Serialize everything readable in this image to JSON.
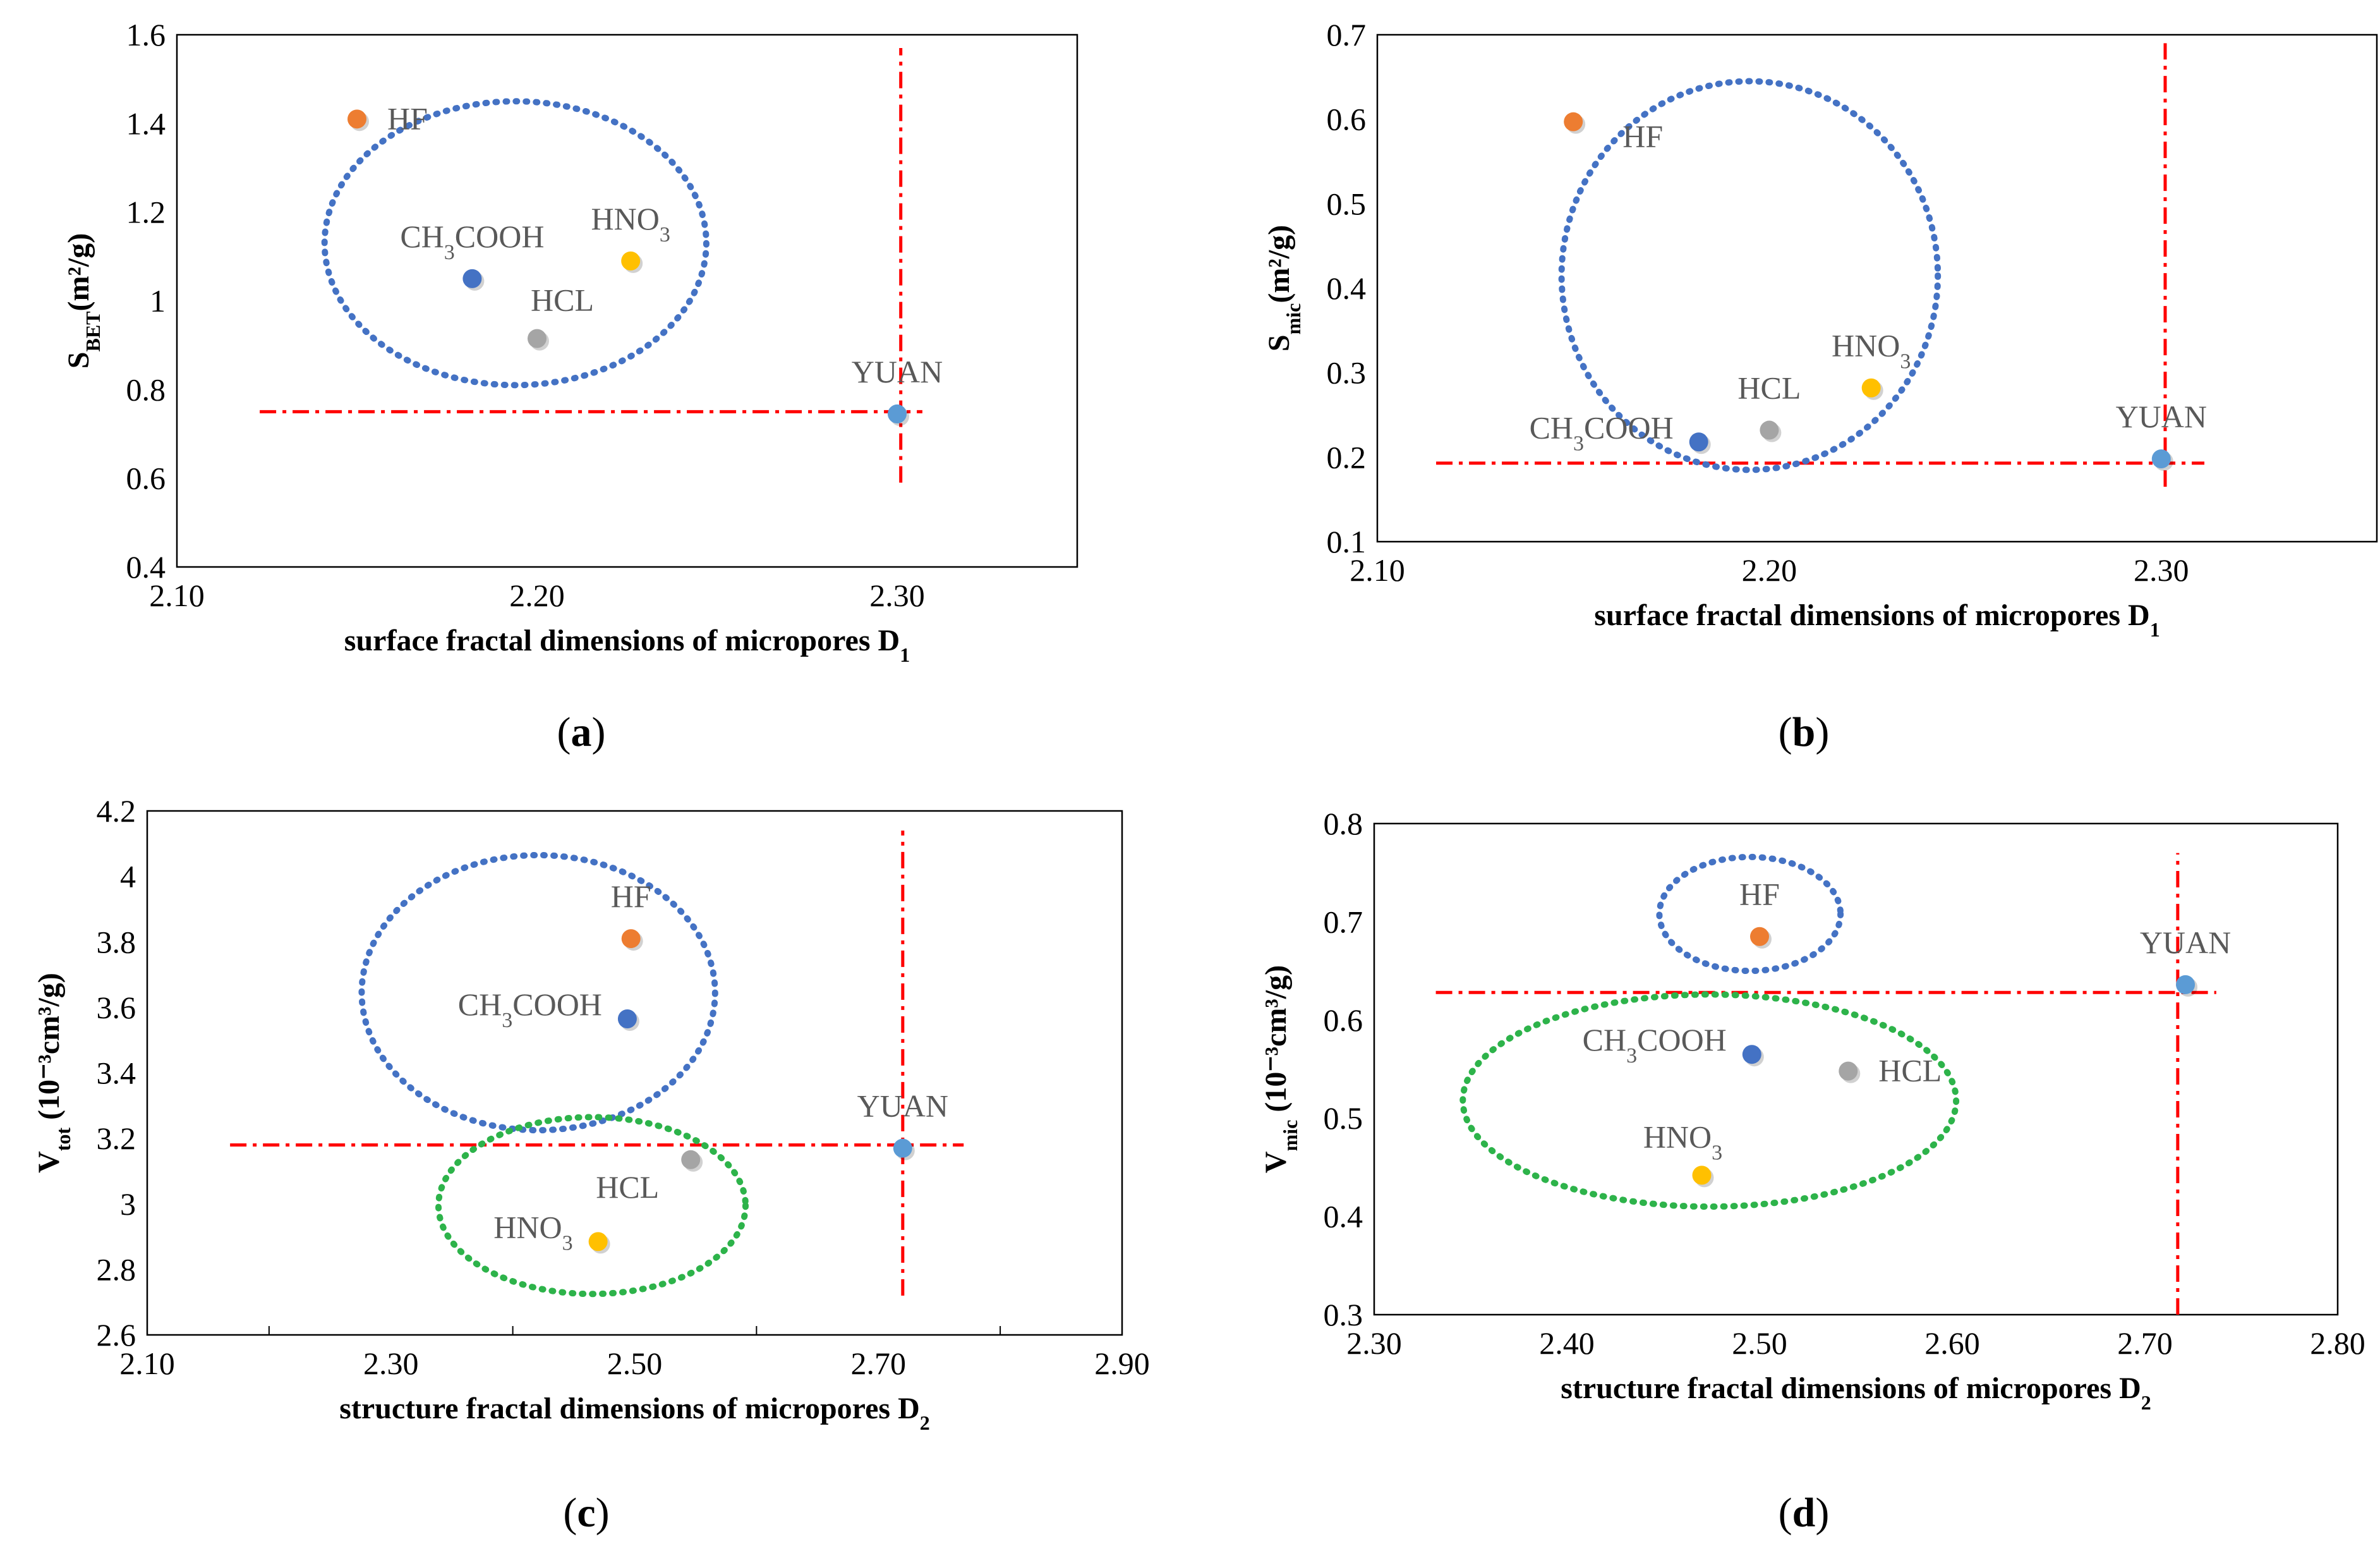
{
  "chart_data": [
    {
      "type": "scatter",
      "panel": "a",
      "ylabel": "S",
      "ylabel_sub": "BET",
      "ylabel_unit": "(m²/g)",
      "xlabel": "surface fractal dimensions of micropores D",
      "xlabel_sub": "1",
      "xlim": [
        2.1,
        2.35
      ],
      "ylim": [
        0.4,
        1.6
      ],
      "xticks": [
        "2.10",
        "2.20",
        "2.30"
      ],
      "xtick_values": [
        2.1,
        2.2,
        2.3
      ],
      "yticks": [
        "0.4",
        "0.6",
        "0.8",
        "1",
        "1.2",
        "1.4",
        "1.6"
      ],
      "ytick_values": [
        0.4,
        0.6,
        0.8,
        1.0,
        1.2,
        1.4,
        1.6
      ],
      "minor_xticks": [],
      "points": [
        {
          "label": "HF",
          "x": 2.15,
          "y": 1.41,
          "color": "#ED7D31",
          "label_side": "right"
        },
        {
          "label": "CH₃COOH",
          "x": 2.182,
          "y": 1.05,
          "color": "#4472C4",
          "label_side": "above"
        },
        {
          "label": "HNO₃",
          "x": 2.226,
          "y": 1.09,
          "color": "#FFC000",
          "label_side": "above"
        },
        {
          "label": "HCL",
          "x": 2.2,
          "y": 0.915,
          "color": "#A5A5A5",
          "label_side": "above-right"
        },
        {
          "label": "YUAN",
          "x": 2.3,
          "y": 0.745,
          "color": "#5B9BD5",
          "label_side": "above"
        }
      ],
      "ellipses": [
        {
          "cx": 2.194,
          "cy": 1.13,
          "rx": 0.053,
          "ry": 0.32,
          "color": "#4472C4"
        }
      ],
      "ref_lines": [
        {
          "orientation": "horizontal",
          "value": 0.75,
          "from": 2.123,
          "to": 2.307
        },
        {
          "orientation": "vertical",
          "value": 2.301,
          "from": 0.59,
          "to": 1.57
        }
      ]
    },
    {
      "type": "scatter",
      "panel": "b",
      "ylabel": "S",
      "ylabel_sub": "mic",
      "ylabel_unit": "(m²/g)",
      "xlabel": "surface fractal dimensions of micropores D",
      "xlabel_sub": "1",
      "xlim": [
        2.1,
        2.355
      ],
      "ylim": [
        0.1,
        0.7
      ],
      "xticks": [
        "2.10",
        "2.20",
        "2.30"
      ],
      "xtick_values": [
        2.1,
        2.2,
        2.3
      ],
      "yticks": [
        "0.1",
        "0.2",
        "0.3",
        "0.4",
        "0.5",
        "0.6",
        "0.7"
      ],
      "ytick_values": [
        0.1,
        0.2,
        0.3,
        0.4,
        0.5,
        0.6,
        0.7
      ],
      "minor_xticks": [],
      "points": [
        {
          "label": "HF",
          "x": 2.15,
          "y": 0.597,
          "color": "#ED7D31",
          "label_side": "below-right"
        },
        {
          "label": "CH₃COOH",
          "x": 2.182,
          "y": 0.218,
          "color": "#4472C4",
          "label_side": "left"
        },
        {
          "label": "HCL",
          "x": 2.2,
          "y": 0.232,
          "color": "#A5A5A5",
          "label_side": "above"
        },
        {
          "label": "HNO₃",
          "x": 2.226,
          "y": 0.282,
          "color": "#FFC000",
          "label_side": "above"
        },
        {
          "label": "YUAN",
          "x": 2.3,
          "y": 0.198,
          "color": "#5B9BD5",
          "label_side": "above"
        }
      ],
      "ellipses": [
        {
          "cx": 2.195,
          "cy": 0.415,
          "rx": 0.048,
          "ry": 0.23,
          "color": "#4472C4"
        }
      ],
      "ref_lines": [
        {
          "orientation": "horizontal",
          "value": 0.193,
          "from": 2.115,
          "to": 2.311
        },
        {
          "orientation": "vertical",
          "value": 2.301,
          "from": 0.165,
          "to": 0.69
        }
      ]
    },
    {
      "type": "scatter",
      "panel": "c",
      "ylabel": "V",
      "ylabel_sub": "tot",
      "ylabel_unit": " (10⁻³cm³/g)",
      "xlabel": "structure fractal dimensions of micropores D",
      "xlabel_sub": "2",
      "xlim": [
        2.1,
        2.9
      ],
      "ylim": [
        2.6,
        4.2
      ],
      "xticks": [
        "2.10",
        "2.30",
        "2.50",
        "2.70",
        "2.90"
      ],
      "xtick_values": [
        2.1,
        2.3,
        2.5,
        2.7,
        2.9
      ],
      "yticks": [
        "2.6",
        "2.8",
        "3",
        "3.2",
        "3.4",
        "3.6",
        "3.8",
        "4",
        "4.2"
      ],
      "ytick_values": [
        2.6,
        2.8,
        3.0,
        3.2,
        3.4,
        3.6,
        3.8,
        4.0,
        4.2
      ],
      "minor_xticks": [
        2.2,
        2.4,
        2.6,
        2.8
      ],
      "points": [
        {
          "label": "HF",
          "x": 2.497,
          "y": 3.81,
          "color": "#ED7D31",
          "label_side": "above"
        },
        {
          "label": "CH₃COOH",
          "x": 2.494,
          "y": 3.565,
          "color": "#4472C4",
          "label_side": "left"
        },
        {
          "label": "HCL",
          "x": 2.546,
          "y": 3.135,
          "color": "#A5A5A5",
          "label_side": "below-left"
        },
        {
          "label": "HNO₃",
          "x": 2.47,
          "y": 2.885,
          "color": "#FFC000",
          "label_side": "left"
        },
        {
          "label": "YUAN",
          "x": 2.72,
          "y": 3.17,
          "color": "#5B9BD5",
          "label_side": "above"
        }
      ],
      "ellipses": [
        {
          "cx": 2.421,
          "cy": 3.645,
          "rx": 0.145,
          "ry": 0.42,
          "color": "#4472C4"
        },
        {
          "cx": 2.465,
          "cy": 2.995,
          "rx": 0.126,
          "ry": 0.27,
          "color": "#2DB34A"
        }
      ],
      "ref_lines": [
        {
          "orientation": "horizontal",
          "value": 3.18,
          "from": 2.168,
          "to": 2.77
        },
        {
          "orientation": "vertical",
          "value": 2.72,
          "from": 2.72,
          "to": 4.14
        }
      ]
    },
    {
      "type": "scatter",
      "panel": "d",
      "ylabel": "V",
      "ylabel_sub": "mic",
      "ylabel_unit": " (10⁻³cm³/g)",
      "xlabel": "structure fractal dimensions of micropores D",
      "xlabel_sub": "2",
      "xlim": [
        2.3,
        2.8
      ],
      "ylim": [
        0.3,
        0.8
      ],
      "xticks": [
        "2.30",
        "2.40",
        "2.50",
        "2.60",
        "2.70",
        "2.80"
      ],
      "xtick_values": [
        2.3,
        2.4,
        2.5,
        2.6,
        2.7,
        2.8
      ],
      "yticks": [
        "0.3",
        "0.4",
        "0.5",
        "0.6",
        "0.7",
        "0.8"
      ],
      "ytick_values": [
        0.3,
        0.4,
        0.5,
        0.6,
        0.7,
        0.8
      ],
      "minor_xticks": [],
      "points": [
        {
          "label": "HF",
          "x": 2.5,
          "y": 0.685,
          "color": "#ED7D31",
          "label_side": "above"
        },
        {
          "label": "YUAN",
          "x": 2.721,
          "y": 0.636,
          "color": "#5B9BD5",
          "label_side": "above"
        },
        {
          "label": "CH₃COOH",
          "x": 2.496,
          "y": 0.565,
          "color": "#4472C4",
          "label_side": "left"
        },
        {
          "label": "HCL",
          "x": 2.546,
          "y": 0.548,
          "color": "#A5A5A5",
          "label_side": "right"
        },
        {
          "label": "HNO₃",
          "x": 2.47,
          "y": 0.442,
          "color": "#FFC000",
          "label_side": "above-left"
        }
      ],
      "ellipses": [
        {
          "cx": 2.495,
          "cy": 0.708,
          "rx": 0.047,
          "ry": 0.058,
          "color": "#4472C4"
        },
        {
          "cx": 2.474,
          "cy": 0.518,
          "rx": 0.128,
          "ry": 0.108,
          "color": "#2DB34A"
        }
      ],
      "ref_lines": [
        {
          "orientation": "horizontal",
          "value": 0.628,
          "from": 2.332,
          "to": 2.737
        },
        {
          "orientation": "vertical",
          "value": 2.717,
          "from": 0.3,
          "to": 0.77
        }
      ]
    }
  ],
  "captions": [
    {
      "open": "(",
      "letter": "a",
      "close": ")"
    },
    {
      "open": "(",
      "letter": "b",
      "close": ")"
    },
    {
      "open": "(",
      "letter": "c",
      "close": ")"
    },
    {
      "open": "(",
      "letter": "d",
      "close": ")"
    }
  ],
  "colors": {
    "ref_line": "#FF0000",
    "axis": "#000000"
  }
}
